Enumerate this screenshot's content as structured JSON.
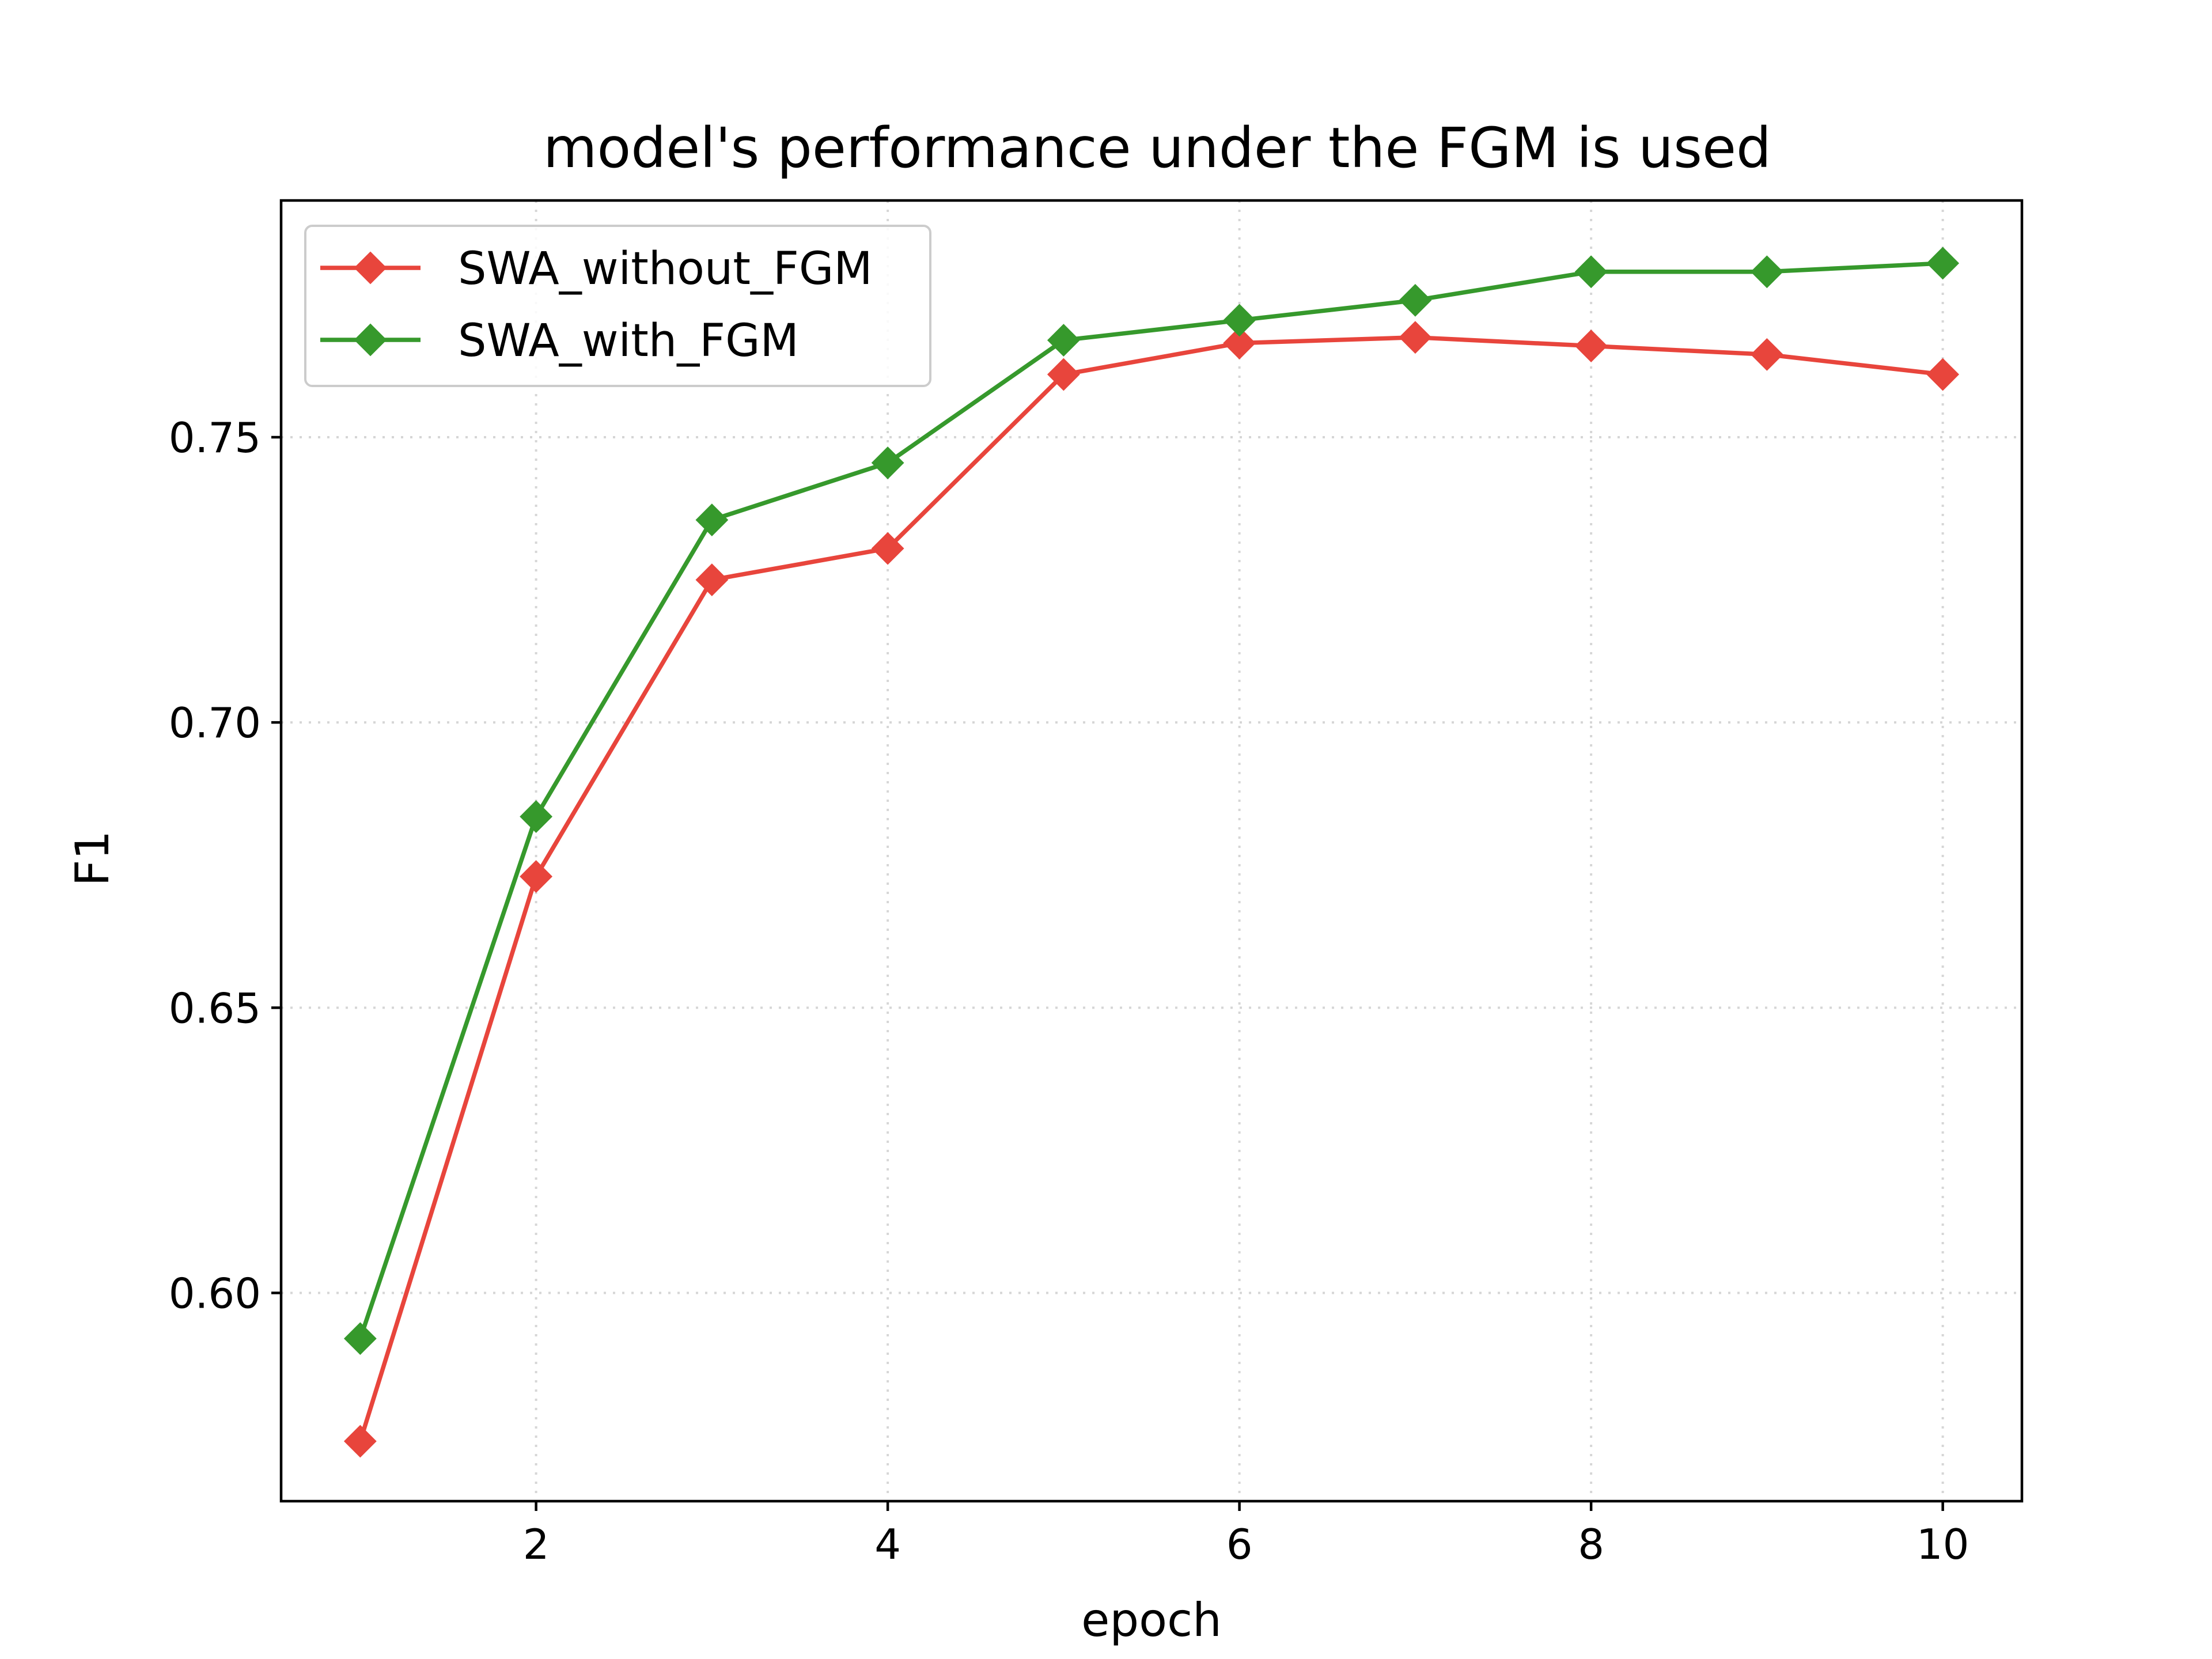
{
  "chart_data": {
    "type": "line",
    "title": "model's performance under the FGM is used",
    "xlabel": "epoch",
    "ylabel": "F1",
    "x": [
      1,
      2,
      3,
      4,
      5,
      6,
      7,
      8,
      9,
      10
    ],
    "xlim": [
      0.55,
      10.45
    ],
    "ylim": [
      0.5635,
      0.7915
    ],
    "xticks": [
      2,
      4,
      6,
      8,
      10
    ],
    "xtick_labels": [
      "2",
      "4",
      "6",
      "8",
      "10"
    ],
    "yticks": [
      0.6,
      0.65,
      0.7,
      0.75
    ],
    "ytick_labels": [
      "0.60",
      "0.65",
      "0.70",
      "0.75"
    ],
    "grid": true,
    "legend_position": "top-left",
    "series": [
      {
        "name": "SWA_without_FGM",
        "color": "#e8453c",
        "marker": "diamond",
        "values": [
          0.574,
          0.673,
          0.725,
          0.7305,
          0.761,
          0.7665,
          0.7675,
          0.766,
          0.7645,
          0.761
        ]
      },
      {
        "name": "SWA_with_FGM",
        "color": "#36992c",
        "marker": "diamond",
        "values": [
          0.592,
          0.6835,
          0.7355,
          0.7455,
          0.767,
          0.7705,
          0.774,
          0.779,
          0.779,
          0.7805
        ]
      }
    ]
  }
}
